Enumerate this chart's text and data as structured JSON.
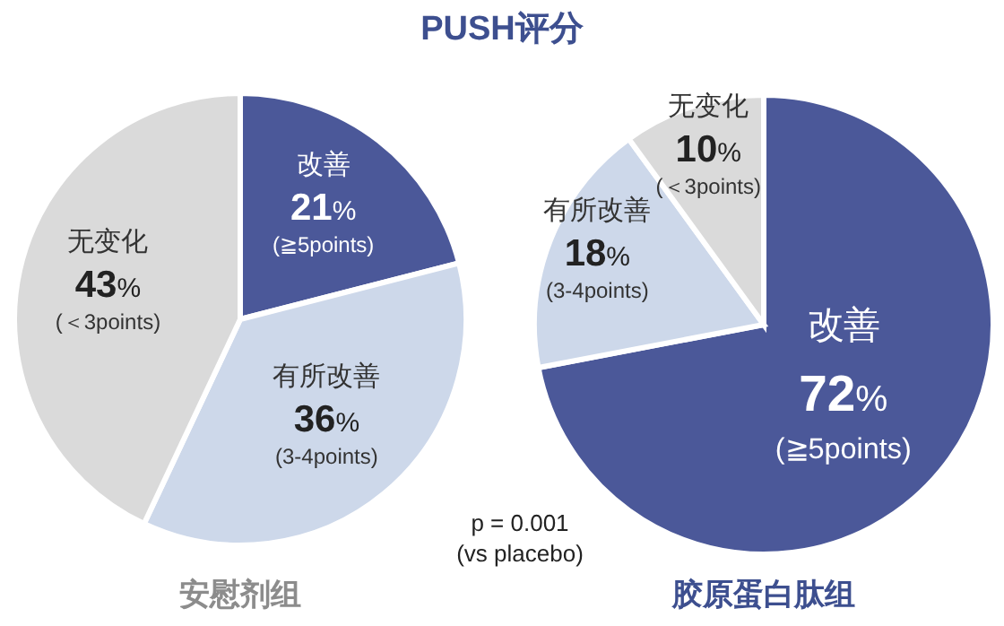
{
  "chart_data": [
    {
      "type": "pie",
      "title": "PUSH评分",
      "xlabel": "安慰剂组",
      "categories": [
        "改善",
        "有所改善",
        "无变化"
      ],
      "values": [
        21,
        36,
        43
      ],
      "colors": [
        "#4b5899",
        "#cdd8ea",
        "#dadada"
      ],
      "value_labels": [
        "21%",
        "36%",
        "43%"
      ],
      "annotations": [
        {
          "text": "(≧5points)",
          "x": "改善"
        },
        {
          "text": "(3-4points)",
          "x": "有所改善"
        },
        {
          "text": "(＜3points)",
          "x": "无变化"
        }
      ]
    },
    {
      "type": "pie",
      "xlabel": "胶原蛋白肽组",
      "categories": [
        "改善",
        "有所改善",
        "无变化"
      ],
      "values": [
        72,
        18,
        10
      ],
      "colors": [
        "#4b5899",
        "#cdd8ea",
        "#dadada"
      ],
      "value_labels": [
        "72%",
        "18%",
        "10%"
      ],
      "annotations": [
        {
          "text": "(≧5points)",
          "x": "改善"
        },
        {
          "text": "(3-4points)",
          "x": "有所改善"
        },
        {
          "text": "(＜3points)",
          "x": "无变化"
        },
        "p = 0.001\n(vs placebo)"
      ]
    }
  ]
}
